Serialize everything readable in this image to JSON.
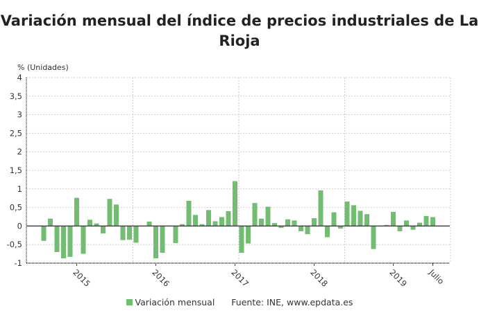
{
  "chart_data": {
    "type": "bar",
    "title": "Variación mensual del índice de precios industriales de La Rioja",
    "ylabel": "% (Unidades)",
    "xlabel": "",
    "ylim": [
      -1,
      4
    ],
    "yticks": [
      -1,
      -0.5,
      0,
      0.5,
      1,
      1.5,
      2,
      2.5,
      3,
      3.5,
      4
    ],
    "ytick_labels": [
      "-1",
      "-0,5",
      "0",
      "0,5",
      "1",
      "1,5",
      "2",
      "2,5",
      "3",
      "3,5",
      "4"
    ],
    "xtick_labels": [
      {
        "category": "2015-01",
        "label": "2015"
      },
      {
        "category": "2016-01",
        "label": "2016"
      },
      {
        "category": "2017-01",
        "label": "2017"
      },
      {
        "category": "2018-01",
        "label": "2018"
      },
      {
        "category": "2019-01",
        "label": "2019"
      },
      {
        "category": "2019-07",
        "label": "Julio"
      }
    ],
    "grid": true,
    "legend_placement": "bottom",
    "color": "#72bd72",
    "series": [
      {
        "name": "Variación mensual",
        "categories": [
          "2014-08",
          "2014-09",
          "2014-10",
          "2014-11",
          "2014-12",
          "2015-01",
          "2015-02",
          "2015-03",
          "2015-04",
          "2015-05",
          "2015-06",
          "2015-07",
          "2015-08",
          "2015-09",
          "2015-10",
          "2015-11",
          "2015-12",
          "2016-01",
          "2016-02",
          "2016-03",
          "2016-04",
          "2016-05",
          "2016-06",
          "2016-07",
          "2016-08",
          "2016-09",
          "2016-10",
          "2016-11",
          "2016-12",
          "2017-01",
          "2017-02",
          "2017-03",
          "2017-04",
          "2017-05",
          "2017-06",
          "2017-07",
          "2017-08",
          "2017-09",
          "2017-10",
          "2017-11",
          "2017-12",
          "2018-01",
          "2018-02",
          "2018-03",
          "2018-04",
          "2018-05",
          "2018-06",
          "2018-07",
          "2018-08",
          "2018-09",
          "2018-10",
          "2018-11",
          "2018-12",
          "2019-01",
          "2019-02",
          "2019-03",
          "2019-04",
          "2019-05",
          "2019-06",
          "2019-07"
        ],
        "values": [
          -0.4,
          0.2,
          -0.7,
          -0.87,
          -0.83,
          0.76,
          -0.75,
          0.17,
          0.07,
          -0.2,
          0.73,
          0.58,
          -0.38,
          -0.37,
          -0.45,
          0,
          0.12,
          -0.87,
          -0.72,
          0,
          -0.46,
          0.05,
          0.68,
          0.3,
          0.05,
          0.43,
          0.13,
          0.24,
          0.4,
          1.21,
          -0.72,
          -0.47,
          0.62,
          0.2,
          0.52,
          0.08,
          -0.05,
          0.18,
          0.15,
          -0.14,
          -0.22,
          0.21,
          0.96,
          -0.3,
          0.37,
          -0.07,
          0.66,
          0.56,
          0.41,
          0.32,
          -0.62,
          0,
          0.03,
          0.38,
          -0.14,
          0.15,
          -0.1,
          0.09,
          0.27,
          0.24
        ]
      }
    ],
    "source": "Fuente: INE, www.epdata.es"
  }
}
